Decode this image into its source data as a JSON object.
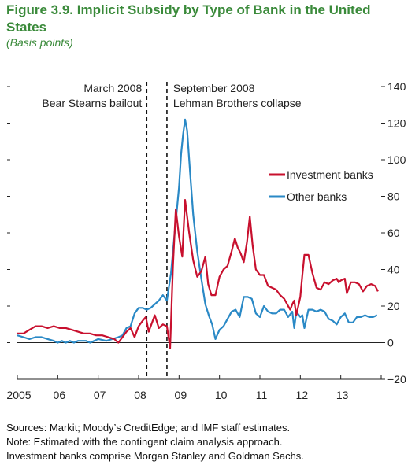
{
  "figure": {
    "title": "Figure 3.9. Implicit Subsidy by Type of Bank in the United States",
    "subtitle": "(Basis points)"
  },
  "notes": [
    "Sources: Markit; Moody’s CreditEdge; and IMF staff estimates.",
    "Note: Estimated with the contingent claim analysis approach.",
    "Investment banks comprise Morgan Stanley and Goldman Sachs."
  ],
  "colors": {
    "investment_banks": "#c8102e",
    "other_banks": "#2a89c6"
  },
  "chart_data": {
    "type": "line",
    "title": "Figure 3.9. Implicit Subsidy by Type of Bank in the United States",
    "ylabel": "(Basis points)",
    "xlim": [
      2005.0,
      2014.0
    ],
    "ylim": [
      -20,
      140
    ],
    "y_ticks": [
      140,
      120,
      100,
      80,
      60,
      40,
      20,
      0,
      -20
    ],
    "y_tick_labels": [
      "140",
      "120",
      "100",
      "80",
      "60",
      "40",
      "20",
      "0",
      "−20"
    ],
    "x_ticks": [
      2005,
      2006,
      2007,
      2008,
      2009,
      2010,
      2011,
      2012,
      2013
    ],
    "x_tick_labels": [
      "2005",
      "06",
      "07",
      "08",
      "09",
      "10",
      "11",
      "12",
      "13"
    ],
    "legend_position": "right",
    "vlines": [
      {
        "x": 2008.2,
        "label_line1": "March 2008",
        "label_line2": "Bear Stearns bailout",
        "label_side": "left"
      },
      {
        "x": 2008.7,
        "label_line1": "September 2008",
        "label_line2": "Lehman Brothers collapse",
        "label_side": "right"
      }
    ],
    "series": [
      {
        "name": "Investment banks",
        "color": "#c8102e",
        "points": [
          [
            2005.0,
            5
          ],
          [
            2005.15,
            5
          ],
          [
            2005.3,
            7
          ],
          [
            2005.45,
            9
          ],
          [
            2005.6,
            9
          ],
          [
            2005.75,
            8
          ],
          [
            2005.9,
            9
          ],
          [
            2006.05,
            8
          ],
          [
            2006.2,
            8
          ],
          [
            2006.35,
            7
          ],
          [
            2006.5,
            6
          ],
          [
            2006.65,
            5
          ],
          [
            2006.8,
            5
          ],
          [
            2006.95,
            4
          ],
          [
            2007.1,
            4
          ],
          [
            2007.25,
            3
          ],
          [
            2007.4,
            2
          ],
          [
            2007.5,
            0
          ],
          [
            2007.6,
            3
          ],
          [
            2007.7,
            6
          ],
          [
            2007.8,
            8
          ],
          [
            2007.9,
            3
          ],
          [
            2008.0,
            9
          ],
          [
            2008.1,
            12
          ],
          [
            2008.18,
            14
          ],
          [
            2008.25,
            6
          ],
          [
            2008.4,
            15
          ],
          [
            2008.5,
            8
          ],
          [
            2008.6,
            10
          ],
          [
            2008.7,
            9
          ],
          [
            2008.78,
            -3
          ],
          [
            2008.85,
            42
          ],
          [
            2008.92,
            73
          ],
          [
            2009.0,
            58
          ],
          [
            2009.08,
            47
          ],
          [
            2009.15,
            78
          ],
          [
            2009.25,
            60
          ],
          [
            2009.35,
            45
          ],
          [
            2009.45,
            36
          ],
          [
            2009.55,
            39
          ],
          [
            2009.65,
            47
          ],
          [
            2009.72,
            32
          ],
          [
            2009.8,
            26
          ],
          [
            2009.9,
            26
          ],
          [
            2010.0,
            36
          ],
          [
            2010.1,
            40
          ],
          [
            2010.2,
            42
          ],
          [
            2010.3,
            50
          ],
          [
            2010.38,
            57
          ],
          [
            2010.45,
            52
          ],
          [
            2010.52,
            49
          ],
          [
            2010.6,
            44
          ],
          [
            2010.68,
            55
          ],
          [
            2010.75,
            69
          ],
          [
            2010.82,
            53
          ],
          [
            2010.9,
            40
          ],
          [
            2011.0,
            37
          ],
          [
            2011.1,
            37
          ],
          [
            2011.2,
            31
          ],
          [
            2011.3,
            30
          ],
          [
            2011.4,
            29
          ],
          [
            2011.5,
            26
          ],
          [
            2011.6,
            24
          ],
          [
            2011.7,
            20
          ],
          [
            2011.75,
            18
          ],
          [
            2011.8,
            21
          ],
          [
            2011.85,
            23
          ],
          [
            2011.9,
            15
          ],
          [
            2012.0,
            25
          ],
          [
            2012.05,
            37
          ],
          [
            2012.1,
            48
          ],
          [
            2012.2,
            48
          ],
          [
            2012.3,
            38
          ],
          [
            2012.4,
            30
          ],
          [
            2012.5,
            29
          ],
          [
            2012.6,
            33
          ],
          [
            2012.7,
            32
          ],
          [
            2012.8,
            34
          ],
          [
            2012.9,
            35
          ],
          [
            2012.95,
            33
          ],
          [
            2013.0,
            34
          ],
          [
            2013.1,
            35
          ],
          [
            2013.15,
            27
          ],
          [
            2013.25,
            33
          ],
          [
            2013.35,
            33
          ],
          [
            2013.45,
            32
          ],
          [
            2013.55,
            28
          ],
          [
            2013.65,
            31
          ],
          [
            2013.75,
            32
          ],
          [
            2013.85,
            31
          ],
          [
            2013.92,
            28
          ]
        ]
      },
      {
        "name": "Other banks",
        "color": "#2a89c6",
        "points": [
          [
            2005.0,
            4
          ],
          [
            2005.15,
            3
          ],
          [
            2005.3,
            2
          ],
          [
            2005.45,
            3
          ],
          [
            2005.6,
            3
          ],
          [
            2005.75,
            2
          ],
          [
            2005.9,
            1
          ],
          [
            2006.0,
            0
          ],
          [
            2006.1,
            1
          ],
          [
            2006.2,
            0
          ],
          [
            2006.3,
            1
          ],
          [
            2006.4,
            0
          ],
          [
            2006.5,
            1
          ],
          [
            2006.6,
            1
          ],
          [
            2006.7,
            1
          ],
          [
            2006.8,
            0
          ],
          [
            2006.9,
            1
          ],
          [
            2007.0,
            2
          ],
          [
            2007.2,
            1
          ],
          [
            2007.35,
            2
          ],
          [
            2007.5,
            3
          ],
          [
            2007.6,
            4
          ],
          [
            2007.7,
            8
          ],
          [
            2007.8,
            9
          ],
          [
            2007.9,
            16
          ],
          [
            2008.0,
            19
          ],
          [
            2008.1,
            19
          ],
          [
            2008.2,
            18
          ],
          [
            2008.3,
            19
          ],
          [
            2008.4,
            21
          ],
          [
            2008.5,
            23
          ],
          [
            2008.6,
            26
          ],
          [
            2008.7,
            23
          ],
          [
            2008.8,
            38
          ],
          [
            2008.9,
            62
          ],
          [
            2009.0,
            85
          ],
          [
            2009.05,
            103
          ],
          [
            2009.1,
            114
          ],
          [
            2009.15,
            122
          ],
          [
            2009.2,
            116
          ],
          [
            2009.28,
            91
          ],
          [
            2009.35,
            70
          ],
          [
            2009.45,
            50
          ],
          [
            2009.55,
            35
          ],
          [
            2009.65,
            21
          ],
          [
            2009.75,
            14
          ],
          [
            2009.82,
            10
          ],
          [
            2009.9,
            2
          ],
          [
            2010.0,
            7
          ],
          [
            2010.1,
            9
          ],
          [
            2010.2,
            13
          ],
          [
            2010.3,
            17
          ],
          [
            2010.4,
            18
          ],
          [
            2010.5,
            14
          ],
          [
            2010.6,
            25
          ],
          [
            2010.7,
            25
          ],
          [
            2010.8,
            24
          ],
          [
            2010.9,
            16
          ],
          [
            2011.0,
            14
          ],
          [
            2011.1,
            20
          ],
          [
            2011.2,
            17
          ],
          [
            2011.3,
            16
          ],
          [
            2011.4,
            16
          ],
          [
            2011.5,
            18
          ],
          [
            2011.6,
            18
          ],
          [
            2011.7,
            14
          ],
          [
            2011.8,
            17
          ],
          [
            2011.85,
            8
          ],
          [
            2011.9,
            17
          ],
          [
            2012.0,
            14
          ],
          [
            2012.05,
            15
          ],
          [
            2012.1,
            8
          ],
          [
            2012.2,
            18
          ],
          [
            2012.3,
            18
          ],
          [
            2012.4,
            17
          ],
          [
            2012.5,
            18
          ],
          [
            2012.6,
            17
          ],
          [
            2012.7,
            13
          ],
          [
            2012.8,
            12
          ],
          [
            2012.9,
            10
          ],
          [
            2013.0,
            14
          ],
          [
            2013.1,
            16
          ],
          [
            2013.2,
            11
          ],
          [
            2013.3,
            11
          ],
          [
            2013.4,
            14
          ],
          [
            2013.5,
            14
          ],
          [
            2013.6,
            15
          ],
          [
            2013.7,
            14
          ],
          [
            2013.8,
            14
          ],
          [
            2013.9,
            15
          ]
        ]
      }
    ]
  }
}
